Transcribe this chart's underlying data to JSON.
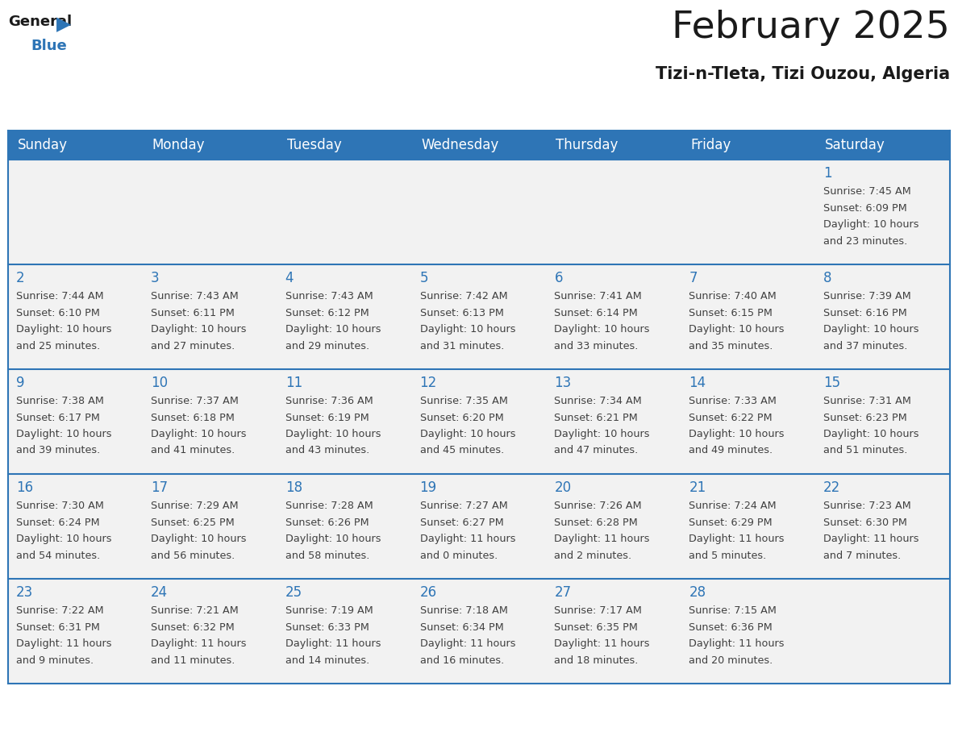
{
  "title": "February 2025",
  "subtitle": "Tizi-n-Tleta, Tizi Ouzou, Algeria",
  "days_of_week": [
    "Sunday",
    "Monday",
    "Tuesday",
    "Wednesday",
    "Thursday",
    "Friday",
    "Saturday"
  ],
  "header_bg": "#2e75b6",
  "header_text": "#ffffff",
  "row_bg": "#f2f2f2",
  "cell_border": "#2e75b6",
  "day_number_color": "#2e75b6",
  "text_color": "#404040",
  "title_color": "#1a1a1a",
  "calendar": [
    [
      null,
      null,
      null,
      null,
      null,
      null,
      {
        "day": 1,
        "sunrise": "7:45 AM",
        "sunset": "6:09 PM",
        "daylight_hours": 10,
        "daylight_minutes": 23
      }
    ],
    [
      {
        "day": 2,
        "sunrise": "7:44 AM",
        "sunset": "6:10 PM",
        "daylight_hours": 10,
        "daylight_minutes": 25
      },
      {
        "day": 3,
        "sunrise": "7:43 AM",
        "sunset": "6:11 PM",
        "daylight_hours": 10,
        "daylight_minutes": 27
      },
      {
        "day": 4,
        "sunrise": "7:43 AM",
        "sunset": "6:12 PM",
        "daylight_hours": 10,
        "daylight_minutes": 29
      },
      {
        "day": 5,
        "sunrise": "7:42 AM",
        "sunset": "6:13 PM",
        "daylight_hours": 10,
        "daylight_minutes": 31
      },
      {
        "day": 6,
        "sunrise": "7:41 AM",
        "sunset": "6:14 PM",
        "daylight_hours": 10,
        "daylight_minutes": 33
      },
      {
        "day": 7,
        "sunrise": "7:40 AM",
        "sunset": "6:15 PM",
        "daylight_hours": 10,
        "daylight_minutes": 35
      },
      {
        "day": 8,
        "sunrise": "7:39 AM",
        "sunset": "6:16 PM",
        "daylight_hours": 10,
        "daylight_minutes": 37
      }
    ],
    [
      {
        "day": 9,
        "sunrise": "7:38 AM",
        "sunset": "6:17 PM",
        "daylight_hours": 10,
        "daylight_minutes": 39
      },
      {
        "day": 10,
        "sunrise": "7:37 AM",
        "sunset": "6:18 PM",
        "daylight_hours": 10,
        "daylight_minutes": 41
      },
      {
        "day": 11,
        "sunrise": "7:36 AM",
        "sunset": "6:19 PM",
        "daylight_hours": 10,
        "daylight_minutes": 43
      },
      {
        "day": 12,
        "sunrise": "7:35 AM",
        "sunset": "6:20 PM",
        "daylight_hours": 10,
        "daylight_minutes": 45
      },
      {
        "day": 13,
        "sunrise": "7:34 AM",
        "sunset": "6:21 PM",
        "daylight_hours": 10,
        "daylight_minutes": 47
      },
      {
        "day": 14,
        "sunrise": "7:33 AM",
        "sunset": "6:22 PM",
        "daylight_hours": 10,
        "daylight_minutes": 49
      },
      {
        "day": 15,
        "sunrise": "7:31 AM",
        "sunset": "6:23 PM",
        "daylight_hours": 10,
        "daylight_minutes": 51
      }
    ],
    [
      {
        "day": 16,
        "sunrise": "7:30 AM",
        "sunset": "6:24 PM",
        "daylight_hours": 10,
        "daylight_minutes": 54
      },
      {
        "day": 17,
        "sunrise": "7:29 AM",
        "sunset": "6:25 PM",
        "daylight_hours": 10,
        "daylight_minutes": 56
      },
      {
        "day": 18,
        "sunrise": "7:28 AM",
        "sunset": "6:26 PM",
        "daylight_hours": 10,
        "daylight_minutes": 58
      },
      {
        "day": 19,
        "sunrise": "7:27 AM",
        "sunset": "6:27 PM",
        "daylight_hours": 11,
        "daylight_minutes": 0
      },
      {
        "day": 20,
        "sunrise": "7:26 AM",
        "sunset": "6:28 PM",
        "daylight_hours": 11,
        "daylight_minutes": 2
      },
      {
        "day": 21,
        "sunrise": "7:24 AM",
        "sunset": "6:29 PM",
        "daylight_hours": 11,
        "daylight_minutes": 5
      },
      {
        "day": 22,
        "sunrise": "7:23 AM",
        "sunset": "6:30 PM",
        "daylight_hours": 11,
        "daylight_minutes": 7
      }
    ],
    [
      {
        "day": 23,
        "sunrise": "7:22 AM",
        "sunset": "6:31 PM",
        "daylight_hours": 11,
        "daylight_minutes": 9
      },
      {
        "day": 24,
        "sunrise": "7:21 AM",
        "sunset": "6:32 PM",
        "daylight_hours": 11,
        "daylight_minutes": 11
      },
      {
        "day": 25,
        "sunrise": "7:19 AM",
        "sunset": "6:33 PM",
        "daylight_hours": 11,
        "daylight_minutes": 14
      },
      {
        "day": 26,
        "sunrise": "7:18 AM",
        "sunset": "6:34 PM",
        "daylight_hours": 11,
        "daylight_minutes": 16
      },
      {
        "day": 27,
        "sunrise": "7:17 AM",
        "sunset": "6:35 PM",
        "daylight_hours": 11,
        "daylight_minutes": 18
      },
      {
        "day": 28,
        "sunrise": "7:15 AM",
        "sunset": "6:36 PM",
        "daylight_hours": 11,
        "daylight_minutes": 20
      },
      null
    ]
  ]
}
